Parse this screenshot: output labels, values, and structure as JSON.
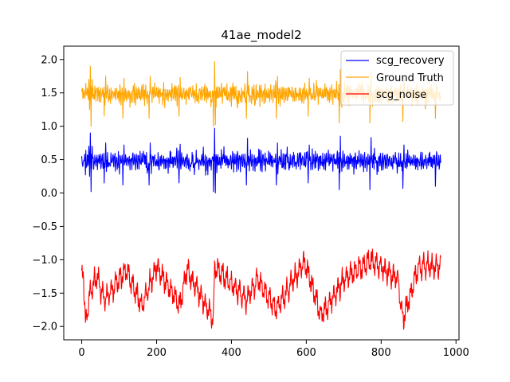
{
  "chart_data": {
    "type": "line",
    "title": "41ae_model2",
    "xlabel": "",
    "ylabel": "",
    "xlim": [
      -48,
      1008
    ],
    "ylim": [
      -2.2,
      2.2
    ],
    "x_ticks": [
      0,
      200,
      400,
      600,
      800,
      1000
    ],
    "y_ticks": [
      2.0,
      1.5,
      1.0,
      0.5,
      0.0,
      -0.5,
      -1.0,
      -1.5,
      -2.0
    ],
    "x_tick_labels": [
      "0",
      "200",
      "400",
      "600",
      "800",
      "1000"
    ],
    "y_tick_labels": [
      "2.0",
      "1.5",
      "1.0",
      "0.5",
      "0.0",
      "−0.5",
      "−1.0",
      "−1.5",
      "−2.0"
    ],
    "legend_position": "top-right",
    "grid": false,
    "n_points": 960,
    "series": [
      {
        "name": "scg_recovery",
        "color": "#0000ff",
        "baseline": 0.48,
        "features": [
          {
            "x": 2,
            "y": 0.42
          },
          {
            "x": 8,
            "y": 0.58
          },
          {
            "x": 14,
            "y": 0.4
          },
          {
            "x": 19,
            "y": 0.7
          },
          {
            "x": 21,
            "y": 0.25
          },
          {
            "x": 23,
            "y": 0.9
          },
          {
            "x": 25,
            "y": 0.02
          },
          {
            "x": 28,
            "y": 0.7
          },
          {
            "x": 60,
            "y": 0.15
          },
          {
            "x": 64,
            "y": 0.75
          },
          {
            "x": 110,
            "y": 0.12
          },
          {
            "x": 113,
            "y": 0.72
          },
          {
            "x": 180,
            "y": 0.12
          },
          {
            "x": 183,
            "y": 0.75
          },
          {
            "x": 260,
            "y": 0.15
          },
          {
            "x": 263,
            "y": 0.73
          },
          {
            "x": 352,
            "y": 0.02
          },
          {
            "x": 355,
            "y": 0.97
          },
          {
            "x": 357,
            "y": 0.0
          },
          {
            "x": 440,
            "y": 0.12
          },
          {
            "x": 443,
            "y": 0.82
          },
          {
            "x": 520,
            "y": 0.12
          },
          {
            "x": 523,
            "y": 0.75
          },
          {
            "x": 605,
            "y": 0.15
          },
          {
            "x": 608,
            "y": 0.72
          },
          {
            "x": 688,
            "y": 0.05
          },
          {
            "x": 691,
            "y": 0.85
          },
          {
            "x": 770,
            "y": 0.05
          },
          {
            "x": 773,
            "y": 0.83
          },
          {
            "x": 858,
            "y": 0.07
          },
          {
            "x": 861,
            "y": 0.72
          },
          {
            "x": 945,
            "y": 0.1
          },
          {
            "x": 948,
            "y": 0.62
          },
          {
            "x": 958,
            "y": 0.57
          }
        ]
      },
      {
        "name": "Ground Truth",
        "color": "#ffa500",
        "baseline": 1.48,
        "features": [
          {
            "x": 2,
            "y": 1.57
          },
          {
            "x": 8,
            "y": 1.42
          },
          {
            "x": 19,
            "y": 1.7
          },
          {
            "x": 21,
            "y": 1.25
          },
          {
            "x": 23,
            "y": 1.9
          },
          {
            "x": 25,
            "y": 1.0
          },
          {
            "x": 28,
            "y": 1.7
          },
          {
            "x": 60,
            "y": 1.15
          },
          {
            "x": 64,
            "y": 1.75
          },
          {
            "x": 110,
            "y": 1.12
          },
          {
            "x": 113,
            "y": 1.72
          },
          {
            "x": 180,
            "y": 1.12
          },
          {
            "x": 183,
            "y": 1.75
          },
          {
            "x": 260,
            "y": 1.15
          },
          {
            "x": 263,
            "y": 1.73
          },
          {
            "x": 352,
            "y": 1.0
          },
          {
            "x": 355,
            "y": 1.97
          },
          {
            "x": 357,
            "y": 1.02
          },
          {
            "x": 440,
            "y": 1.12
          },
          {
            "x": 443,
            "y": 1.82
          },
          {
            "x": 520,
            "y": 1.12
          },
          {
            "x": 523,
            "y": 1.75
          },
          {
            "x": 605,
            "y": 1.15
          },
          {
            "x": 608,
            "y": 1.72
          },
          {
            "x": 688,
            "y": 1.05
          },
          {
            "x": 691,
            "y": 1.85
          },
          {
            "x": 770,
            "y": 1.05
          },
          {
            "x": 773,
            "y": 1.83
          },
          {
            "x": 858,
            "y": 1.07
          },
          {
            "x": 861,
            "y": 1.72
          },
          {
            "x": 945,
            "y": 1.12
          },
          {
            "x": 948,
            "y": 1.62
          },
          {
            "x": 958,
            "y": 1.45
          }
        ]
      },
      {
        "name": "scg_noise",
        "color": "#ff0000",
        "baseline": -1.4,
        "features": [
          {
            "x": 0,
            "y": -1.3
          },
          {
            "x": 4,
            "y": -1.1
          },
          {
            "x": 10,
            "y": -2.0
          },
          {
            "x": 22,
            "y": -1.5
          },
          {
            "x": 40,
            "y": -1.25
          },
          {
            "x": 60,
            "y": -1.6
          },
          {
            "x": 120,
            "y": -1.15
          },
          {
            "x": 160,
            "y": -1.7
          },
          {
            "x": 200,
            "y": -1.1
          },
          {
            "x": 262,
            "y": -1.7
          },
          {
            "x": 280,
            "y": -1.15
          },
          {
            "x": 352,
            "y": -1.9
          },
          {
            "x": 355,
            "y": -1.1
          },
          {
            "x": 440,
            "y": -1.6
          },
          {
            "x": 470,
            "y": -1.3
          },
          {
            "x": 520,
            "y": -1.75
          },
          {
            "x": 595,
            "y": -1.02
          },
          {
            "x": 640,
            "y": -1.85
          },
          {
            "x": 700,
            "y": -1.3
          },
          {
            "x": 772,
            "y": -1.0
          },
          {
            "x": 845,
            "y": -1.3
          },
          {
            "x": 858,
            "y": -1.9
          },
          {
            "x": 900,
            "y": -1.1
          },
          {
            "x": 958,
            "y": -1.1
          }
        ]
      }
    ]
  }
}
